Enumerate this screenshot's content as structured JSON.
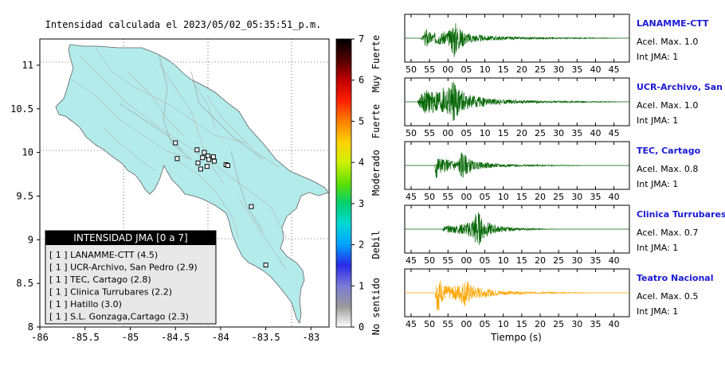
{
  "map": {
    "title": "Intensidad calculada el 2023/05/02_05:35:51_p.m.",
    "x_ticks": [
      "-86",
      "-85.5",
      "-85",
      "-84.5",
      "-84",
      "-83.5",
      "-83"
    ],
    "y_ticks": [
      "11",
      "10.5",
      "10",
      "9.5",
      "9",
      "8.5",
      "8"
    ],
    "xlim": [
      -86,
      -82.8
    ],
    "ylim": [
      8,
      11.3
    ],
    "land_color": "#b3ebeb",
    "stations": [
      {
        "lon": -84.5,
        "lat": 10.11
      },
      {
        "lon": -84.26,
        "lat": 10.03
      },
      {
        "lon": -84.18,
        "lat": 10.0
      },
      {
        "lon": -84.14,
        "lat": 9.96
      },
      {
        "lon": -84.08,
        "lat": 9.95
      },
      {
        "lon": -84.2,
        "lat": 9.94
      },
      {
        "lon": -84.13,
        "lat": 9.92
      },
      {
        "lon": -84.07,
        "lat": 9.9
      },
      {
        "lon": -84.25,
        "lat": 9.88
      },
      {
        "lon": -84.48,
        "lat": 9.93
      },
      {
        "lon": -84.15,
        "lat": 9.84
      },
      {
        "lon": -84.22,
        "lat": 9.81
      },
      {
        "lon": -83.94,
        "lat": 9.86
      },
      {
        "lon": -83.92,
        "lat": 9.85
      },
      {
        "lon": -83.66,
        "lat": 9.38
      },
      {
        "lon": -83.5,
        "lat": 8.71
      }
    ],
    "legend": {
      "header": "INTENSIDAD JMA [0 a 7]",
      "items": [
        "[ 1 ]  LANAMME-CTT (4.5)",
        "[ 1 ]  UCR-Archivo, San Pedro (2.9)",
        "[ 1 ]  TEC, Cartago (2.8)",
        "[ 1 ]  Clinica Turrubares (2.2)",
        "[ 1 ]  Hatillo (3.0)",
        "[ 1 ]  S.L. Gonzaga,Cartago (2.3)"
      ]
    }
  },
  "colorbar": {
    "ticks": [
      "0",
      "1",
      "2",
      "3",
      "4",
      "5",
      "6",
      "7"
    ],
    "labels": [
      "No sentido",
      "Debil",
      "Moderado",
      "Fuerte",
      "Muy Fuerte"
    ],
    "colors": [
      "#ffffff",
      "#9a9a9a",
      "#7a7ad8",
      "#2a2ae8",
      "#00a0ff",
      "#00d8d8",
      "#00d070",
      "#60e000",
      "#d0f000",
      "#ffd000",
      "#ff8000",
      "#ff2000",
      "#c00000",
      "#500000",
      "#000000"
    ]
  },
  "chart_data": [
    {
      "type": "line",
      "station": "LANAMME-CTT",
      "accel_label": "Acel. Max. 1.0",
      "jma_label": "Int JMA: 1",
      "x_ticks": [
        "50",
        "55",
        "00",
        "05",
        "10",
        "15",
        "20",
        "25",
        "30",
        "35",
        "40",
        "45"
      ],
      "color": "#006400",
      "envelope": [
        [
          0,
          0.0
        ],
        [
          2.5,
          0.0
        ],
        [
          3.0,
          0.15
        ],
        [
          3.4,
          0.55
        ],
        [
          4.2,
          0.25
        ],
        [
          6.0,
          0.3
        ],
        [
          7.4,
          0.4
        ],
        [
          7.8,
          1.0
        ],
        [
          8.6,
          0.55
        ],
        [
          10,
          0.25
        ],
        [
          13,
          0.12
        ],
        [
          18,
          0.06
        ],
        [
          25,
          0.03
        ],
        [
          30,
          0.02
        ],
        [
          34,
          0.01
        ]
      ]
    },
    {
      "type": "line",
      "station": "UCR-Archivo, San Pedro",
      "accel_label": "Acel. Max. 1.0",
      "jma_label": "Int JMA: 1",
      "x_ticks": [
        "50",
        "55",
        "00",
        "05",
        "10",
        "15",
        "20",
        "25",
        "30",
        "35",
        "40",
        "45"
      ],
      "color": "#006400",
      "envelope": [
        [
          0,
          0.0
        ],
        [
          2.0,
          0.0
        ],
        [
          2.4,
          0.25
        ],
        [
          3.0,
          0.6
        ],
        [
          4.0,
          0.5
        ],
        [
          5.5,
          0.6
        ],
        [
          7.2,
          0.75
        ],
        [
          7.8,
          1.0
        ],
        [
          8.8,
          0.6
        ],
        [
          10,
          0.35
        ],
        [
          14,
          0.15
        ],
        [
          20,
          0.06
        ],
        [
          28,
          0.03
        ],
        [
          34,
          0.01
        ]
      ]
    },
    {
      "type": "line",
      "station": "TEC, Cartago",
      "accel_label": "Acel. Max. 0.8",
      "jma_label": "Int JMA: 1",
      "x_ticks": [
        "45",
        "50",
        "55",
        "00",
        "05",
        "10",
        "15",
        "20",
        "25",
        "30",
        "35",
        "40"
      ],
      "color": "#006400",
      "envelope": [
        [
          0,
          0.0
        ],
        [
          4.8,
          0.0
        ],
        [
          5.0,
          1.0
        ],
        [
          5.4,
          0.4
        ],
        [
          6.5,
          0.3
        ],
        [
          8.5,
          0.25
        ],
        [
          9.2,
          0.7
        ],
        [
          9.8,
          0.45
        ],
        [
          11,
          0.2
        ],
        [
          14,
          0.1
        ],
        [
          18,
          0.05
        ],
        [
          24,
          0.02
        ],
        [
          28,
          0.01
        ],
        [
          29,
          0.0
        ]
      ]
    },
    {
      "type": "line",
      "station": "Clinica Turrubares",
      "accel_label": "Acel. Max. 0.7",
      "jma_label": "Int JMA: 1",
      "x_ticks": [
        "45",
        "50",
        "55",
        "00",
        "05",
        "10",
        "15",
        "20",
        "25",
        "30",
        "35",
        "40"
      ],
      "color": "#006400",
      "envelope": [
        [
          0,
          0.0
        ],
        [
          6.0,
          0.0
        ],
        [
          6.3,
          0.15
        ],
        [
          7.5,
          0.18
        ],
        [
          8.5,
          0.22
        ],
        [
          10,
          0.3
        ],
        [
          11,
          0.55
        ],
        [
          11.6,
          1.0
        ],
        [
          12.3,
          0.55
        ],
        [
          13.5,
          0.3
        ],
        [
          15,
          0.15
        ],
        [
          18,
          0.06
        ],
        [
          22,
          0.02
        ],
        [
          25,
          0.0
        ]
      ]
    },
    {
      "type": "line",
      "station": "Teatro Nacional",
      "accel_label": "Acel. Max. 0.5",
      "jma_label": "Int JMA: 1",
      "x_ticks": [
        "45",
        "50",
        "55",
        "00",
        "05",
        "10",
        "15",
        "20",
        "25",
        "30",
        "35",
        "40"
      ],
      "xlabel": "Tiempo (s)",
      "color": "#ffa500",
      "envelope": [
        [
          0,
          0.0
        ],
        [
          4.8,
          0.0
        ],
        [
          5.0,
          0.45
        ],
        [
          5.3,
          1.0
        ],
        [
          6.0,
          0.4
        ],
        [
          7.5,
          0.3
        ],
        [
          9.0,
          0.45
        ],
        [
          9.8,
          0.7
        ],
        [
          10.5,
          0.4
        ],
        [
          12,
          0.25
        ],
        [
          15,
          0.12
        ],
        [
          20,
          0.05
        ],
        [
          26,
          0.02
        ],
        [
          30,
          0.01
        ]
      ]
    }
  ]
}
